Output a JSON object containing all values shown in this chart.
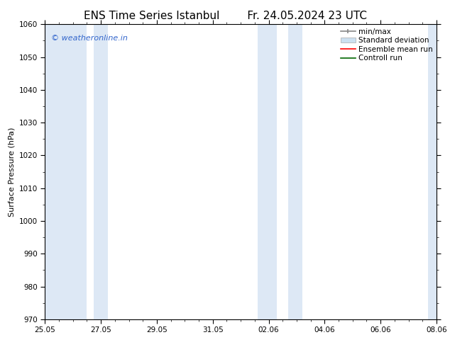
{
  "title_left": "ENS Time Series Istanbul",
  "title_right": "Fr. 24.05.2024 23 UTC",
  "ylabel": "Surface Pressure (hPa)",
  "ylim": [
    970,
    1060
  ],
  "yticks": [
    970,
    980,
    990,
    1000,
    1010,
    1020,
    1030,
    1040,
    1050,
    1060
  ],
  "xtick_labels": [
    "25.05",
    "27.05",
    "29.05",
    "31.05",
    "02.06",
    "04.06",
    "06.06",
    "08.06"
  ],
  "xtick_positions": [
    0,
    2,
    4,
    6,
    8,
    10,
    12,
    14
  ],
  "xlim_start": 0,
  "xlim_end": 14,
  "background_color": "#ffffff",
  "plot_bg_color": "#ffffff",
  "shaded_bands": [
    {
      "x_start": 0.0,
      "x_end": 1.3,
      "color": "#ddeef8"
    },
    {
      "x_start": 1.7,
      "x_end": 2.3,
      "color": "#ddeef8"
    },
    {
      "x_start": 7.7,
      "x_end": 8.3,
      "color": "#ddeef8"
    },
    {
      "x_start": 8.7,
      "x_end": 9.0,
      "color": "#ddeef8"
    },
    {
      "x_start": 13.7,
      "x_end": 14.0,
      "color": "#ddeef8"
    }
  ],
  "watermark_text": "© weatheronline.in",
  "watermark_color": "#3366cc",
  "watermark_fontsize": 8,
  "legend_labels": [
    "min/max",
    "Standard deviation",
    "Ensemble mean run",
    "Controll run"
  ],
  "legend_colors_line": [
    "#999999",
    "#bbccdd",
    "#ff0000",
    "#006600"
  ],
  "legend_color_patch": "#cce0f0",
  "title_fontsize": 11,
  "axis_label_fontsize": 8,
  "tick_fontsize": 7.5,
  "legend_fontsize": 7.5
}
